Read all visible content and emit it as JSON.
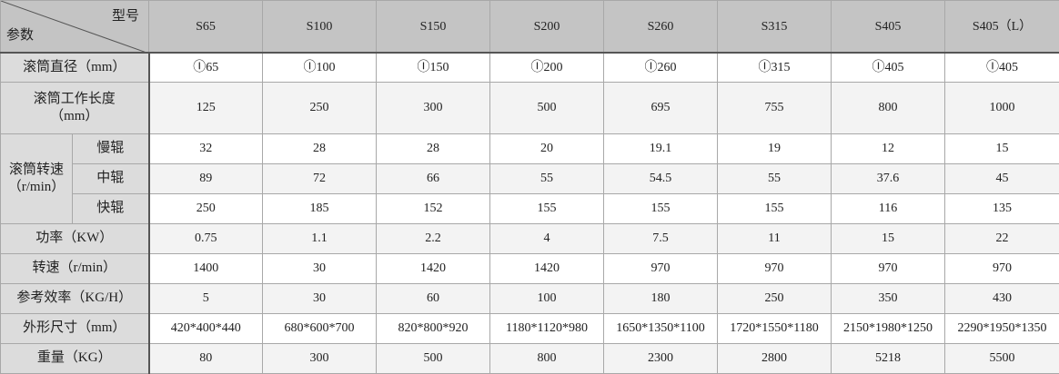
{
  "header": {
    "corner_top": "型号",
    "corner_bottom": "参数",
    "models": [
      "S65",
      "S100",
      "S150",
      "S200",
      "S260",
      "S315",
      "S405",
      "S405（L）"
    ]
  },
  "rows": {
    "diameter": {
      "label": "滚筒直径（mm）",
      "values": [
        "Ⓘ65",
        "Ⓘ100",
        "Ⓘ150",
        "Ⓘ200",
        "Ⓘ260",
        "Ⓘ315",
        "Ⓘ405",
        "Ⓘ405"
      ]
    },
    "length": {
      "label": "滚筒工作长度",
      "unit": "（mm）",
      "values": [
        "125",
        "250",
        "300",
        "500",
        "695",
        "755",
        "800",
        "1000"
      ]
    },
    "roller_speed": {
      "label": "滚筒转速",
      "unit": "（r/min）",
      "slow": {
        "label": "慢辊",
        "values": [
          "32",
          "28",
          "28",
          "20",
          "19.1",
          "19",
          "12",
          "15"
        ]
      },
      "mid": {
        "label": "中辊",
        "values": [
          "89",
          "72",
          "66",
          "55",
          "54.5",
          "55",
          "37.6",
          "45"
        ]
      },
      "fast": {
        "label": "快辊",
        "values": [
          "250",
          "185",
          "152",
          "155",
          "155",
          "155",
          "116",
          "135"
        ]
      }
    },
    "power": {
      "label": "功率（KW）",
      "values": [
        "0.75",
        "1.1",
        "2.2",
        "4",
        "7.5",
        "11",
        "15",
        "22"
      ]
    },
    "speed": {
      "label": "转速（r/min）",
      "values": [
        "1400",
        "30",
        "1420",
        "1420",
        "970",
        "970",
        "970",
        "970"
      ]
    },
    "efficiency": {
      "label": "参考效率（KG/H）",
      "values": [
        "5",
        "30",
        "60",
        "100",
        "180",
        "250",
        "350",
        "430"
      ]
    },
    "size": {
      "label": "外形尺寸（mm）",
      "values": [
        "420*400*440",
        "680*600*700",
        "820*800*920",
        "1180*1120*980",
        "1650*1350*1100",
        "1720*1550*1180",
        "2150*1980*1250",
        "2290*1950*1350"
      ]
    },
    "weight": {
      "label": "重量（KG）",
      "values": [
        "80",
        "300",
        "500",
        "800",
        "2300",
        "2800",
        "5218",
        "5500"
      ]
    }
  }
}
